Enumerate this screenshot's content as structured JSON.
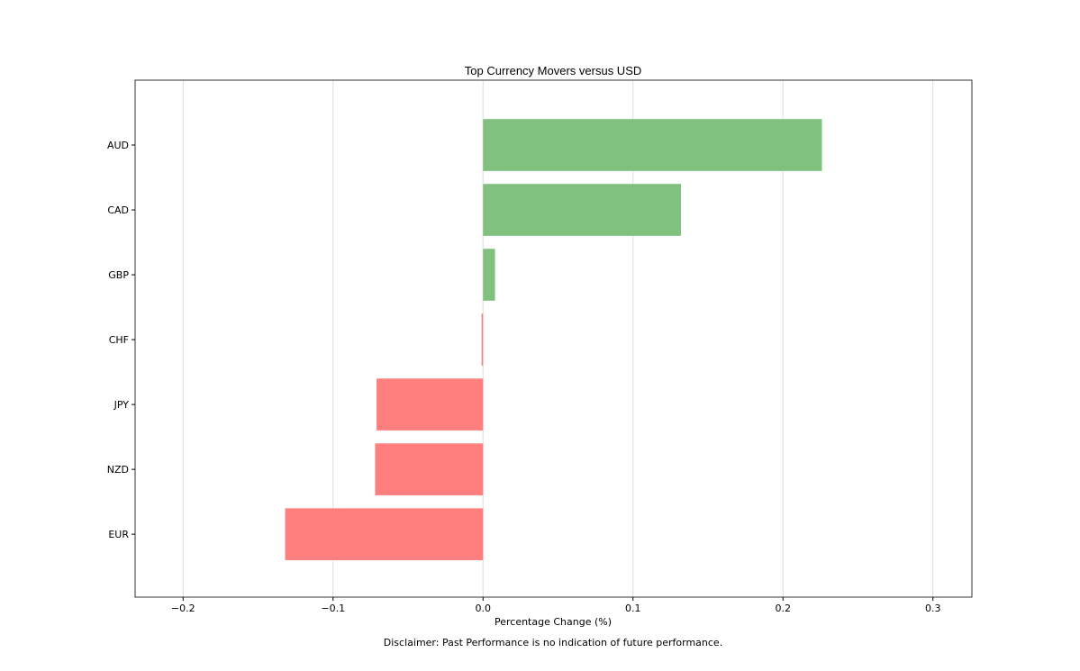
{
  "chart_data": {
    "type": "bar",
    "orientation": "horizontal",
    "title": "Top Currency Movers versus USD",
    "xlabel": "Percentage Change (%)",
    "ylabel": "",
    "categories": [
      "AUD",
      "CAD",
      "GBP",
      "CHF",
      "JPY",
      "NZD",
      "EUR"
    ],
    "values": [
      0.226,
      0.132,
      0.008,
      -0.001,
      -0.071,
      -0.072,
      -0.132
    ],
    "xlim": [
      -0.232,
      0.326
    ],
    "xticks": [
      -0.2,
      -0.1,
      0.0,
      0.1,
      0.2,
      0.3
    ],
    "xtick_labels": [
      "−0.2",
      "−0.1",
      "0.0",
      "0.1",
      "0.2",
      "0.3"
    ],
    "grid": "vertical",
    "colors": {
      "positive": "#81c17f",
      "negative": "#ff7f7f",
      "grid": "#dddddd",
      "frame": "#333333"
    },
    "footnote": "Disclaimer: Past Performance is no indication of future performance."
  }
}
